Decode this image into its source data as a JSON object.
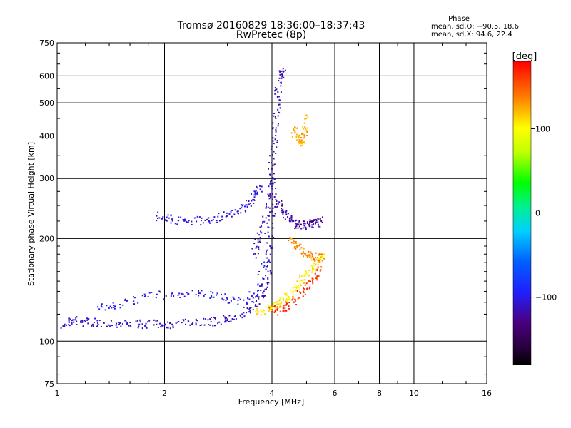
{
  "header": {
    "title_line1": "Tromsø 20160829 18:36:00–18:37:43",
    "title_line2": "RwPretec (8p)"
  },
  "phase_box": {
    "heading": "Phase",
    "o_line": "mean, sd,O: −90.5, 18.6",
    "x_line": "mean, sd,X:  94.6, 22.4"
  },
  "colorbar": {
    "label": "[deg]",
    "ticks": [
      "100",
      "0",
      "−100"
    ],
    "tick_values": [
      100,
      0,
      -100
    ],
    "range": [
      -180,
      180
    ],
    "colormap": "rainbow (black-purple-blue-cyan-green-yellow-orange-red)"
  },
  "chart_data": {
    "type": "scatter",
    "xlabel": "Frequency [MHz]",
    "ylabel": "Stationary phase Virtual Height [km]",
    "xscale": "log",
    "yscale": "log",
    "xlim": [
      1,
      16
    ],
    "ylim": [
      75,
      750
    ],
    "x_tick_values": [
      1,
      2,
      4,
      6,
      8,
      10,
      16
    ],
    "x_tick_labels": [
      "1",
      "2",
      "4",
      "6",
      "8",
      "10",
      "16"
    ],
    "y_tick_values": [
      75,
      100,
      200,
      300,
      400,
      500,
      600,
      750
    ],
    "y_tick_labels": [
      "75",
      "100",
      "200",
      "300",
      "400",
      "500",
      "600",
      "750"
    ],
    "grid": true,
    "color_by": "phase [deg]",
    "traces": [
      {
        "points": [
          [
            1.05,
            112
          ],
          [
            1.1,
            115
          ],
          [
            1.2,
            114
          ],
          [
            1.3,
            113
          ],
          [
            1.5,
            113
          ],
          [
            1.7,
            112
          ],
          [
            1.9,
            112
          ],
          [
            2.1,
            112
          ],
          [
            2.4,
            113
          ],
          [
            2.7,
            114
          ],
          [
            3.0,
            116
          ],
          [
            3.3,
            120
          ],
          [
            3.6,
            128
          ],
          [
            3.8,
            140
          ],
          [
            3.9,
            160
          ],
          [
            3.95,
            190
          ],
          [
            4.0,
            240
          ],
          [
            4.05,
            300
          ]
        ],
        "phase": -110
      },
      {
        "points": [
          [
            1.3,
            126
          ],
          [
            1.5,
            128
          ],
          [
            1.8,
            135
          ],
          [
            2.2,
            138
          ],
          [
            2.6,
            137
          ],
          [
            3.0,
            133
          ],
          [
            3.4,
            130
          ],
          [
            3.7,
            145
          ],
          [
            3.85,
            180
          ]
        ],
        "phase": -100
      },
      {
        "points": [
          [
            1.9,
            233
          ],
          [
            2.1,
            228
          ],
          [
            2.3,
            224
          ],
          [
            2.6,
            226
          ],
          [
            2.9,
            232
          ],
          [
            3.2,
            240
          ],
          [
            3.45,
            252
          ],
          [
            3.6,
            268
          ],
          [
            3.7,
            285
          ]
        ],
        "phase": -105
      },
      {
        "points": [
          [
            3.55,
            180
          ],
          [
            3.7,
            200
          ],
          [
            3.85,
            230
          ],
          [
            3.95,
            270
          ],
          [
            4.0,
            320
          ],
          [
            4.05,
            380
          ],
          [
            4.1,
            450
          ],
          [
            4.15,
            520
          ],
          [
            4.2,
            590
          ],
          [
            4.3,
            630
          ]
        ],
        "phase": -115
      },
      {
        "points": [
          [
            4.1,
            260
          ],
          [
            4.3,
            240
          ],
          [
            4.5,
            230
          ],
          [
            4.7,
            220
          ],
          [
            4.9,
            219
          ],
          [
            5.1,
            219
          ],
          [
            5.3,
            222
          ],
          [
            5.5,
            225
          ]
        ],
        "phase": -120
      },
      {
        "points": [
          [
            3.6,
            122
          ],
          [
            3.8,
            123
          ],
          [
            4.0,
            125
          ],
          [
            4.2,
            128
          ],
          [
            4.4,
            133
          ],
          [
            4.6,
            140
          ],
          [
            4.8,
            150
          ],
          [
            5.0,
            158
          ],
          [
            5.2,
            165
          ],
          [
            5.4,
            172
          ],
          [
            5.6,
            180
          ]
        ],
        "phase": 105
      },
      {
        "points": [
          [
            4.5,
            200
          ],
          [
            4.7,
            190
          ],
          [
            4.9,
            183
          ],
          [
            5.1,
            178
          ],
          [
            5.3,
            176
          ],
          [
            5.6,
            175
          ]
        ],
        "phase": 135
      },
      {
        "points": [
          [
            4.6,
            420
          ],
          [
            4.75,
            395
          ],
          [
            4.85,
            380
          ],
          [
            4.95,
            400
          ],
          [
            5.0,
            460
          ]
        ],
        "phase": 125
      },
      {
        "points": [
          [
            4.0,
            122
          ],
          [
            4.3,
            125
          ],
          [
            4.6,
            130
          ],
          [
            4.9,
            140
          ],
          [
            5.2,
            150
          ],
          [
            5.5,
            165
          ]
        ],
        "phase": 165
      }
    ]
  }
}
